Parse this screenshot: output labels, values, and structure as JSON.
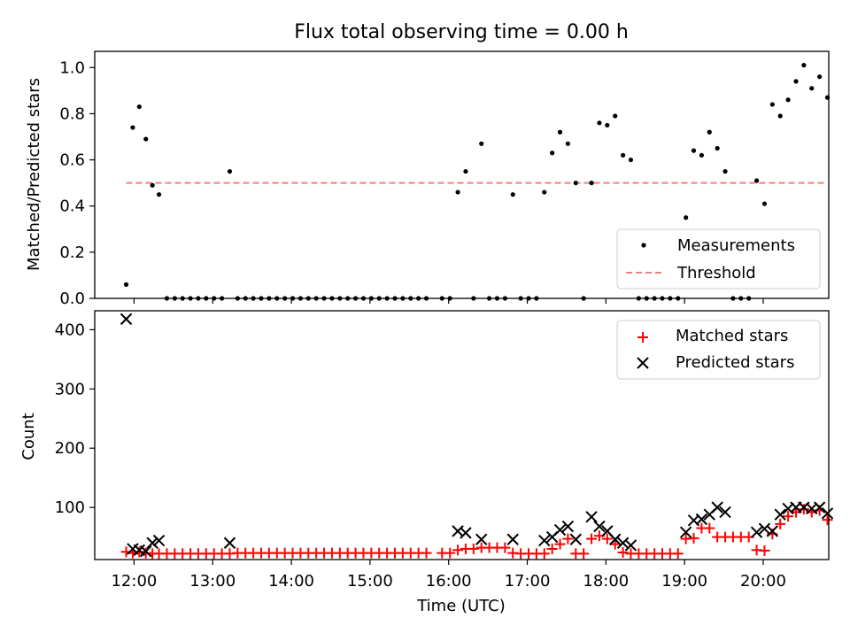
{
  "chart_data": [
    {
      "type": "scatter",
      "title": "Flux total observing time = 0.00 h",
      "xlabel": "",
      "ylabel": "Matched/Predicted stars",
      "xlim": [
        "11:30",
        "20:50"
      ],
      "ylim": [
        0,
        1.07
      ],
      "xticks": [
        "12:00",
        "13:00",
        "14:00",
        "15:00",
        "16:00",
        "17:00",
        "18:00",
        "19:00",
        "20:00"
      ],
      "yticks": [
        "0.0",
        "0.2",
        "0.4",
        "0.6",
        "0.8",
        "1.0"
      ],
      "legend": {
        "position": "lower-right"
      },
      "series": [
        {
          "name": "Measurements",
          "marker": "dot",
          "color": "#000000",
          "points": [
            [
              "11:54",
              0.06
            ],
            [
              "11:59",
              0.74
            ],
            [
              "12:04",
              0.83
            ],
            [
              "12:09",
              0.69
            ],
            [
              "12:14",
              0.49
            ],
            [
              "12:19",
              0.45
            ],
            [
              "12:25",
              0
            ],
            [
              "12:31",
              0
            ],
            [
              "12:37",
              0
            ],
            [
              "12:43",
              0
            ],
            [
              "12:49",
              0
            ],
            [
              "12:55",
              0
            ],
            [
              "13:01",
              0
            ],
            [
              "13:07",
              0
            ],
            [
              "13:13",
              0.55
            ],
            [
              "13:19",
              0
            ],
            [
              "13:25",
              0
            ],
            [
              "13:31",
              0
            ],
            [
              "13:37",
              0
            ],
            [
              "13:43",
              0
            ],
            [
              "13:49",
              0
            ],
            [
              "13:55",
              0
            ],
            [
              "14:01",
              0
            ],
            [
              "14:07",
              0
            ],
            [
              "14:13",
              0
            ],
            [
              "14:19",
              0
            ],
            [
              "14:25",
              0
            ],
            [
              "14:31",
              0
            ],
            [
              "14:37",
              0
            ],
            [
              "14:43",
              0
            ],
            [
              "14:49",
              0
            ],
            [
              "14:55",
              0
            ],
            [
              "15:01",
              0
            ],
            [
              "15:07",
              0
            ],
            [
              "15:13",
              0
            ],
            [
              "15:19",
              0
            ],
            [
              "15:25",
              0
            ],
            [
              "15:31",
              0
            ],
            [
              "15:37",
              0
            ],
            [
              "15:43",
              0
            ],
            [
              "15:55",
              0
            ],
            [
              "16:01",
              0
            ],
            [
              "16:07",
              0.46
            ],
            [
              "16:13",
              0.55
            ],
            [
              "16:19",
              0
            ],
            [
              "16:25",
              0.67
            ],
            [
              "16:31",
              0
            ],
            [
              "16:37",
              0
            ],
            [
              "16:43",
              0
            ],
            [
              "16:49",
              0.45
            ],
            [
              "16:55",
              0
            ],
            [
              "17:01",
              0
            ],
            [
              "17:07",
              0
            ],
            [
              "17:13",
              0.46
            ],
            [
              "17:19",
              0.63
            ],
            [
              "17:25",
              0.72
            ],
            [
              "17:31",
              0.67
            ],
            [
              "17:37",
              0.5
            ],
            [
              "17:43",
              0
            ],
            [
              "17:49",
              0.5
            ],
            [
              "17:55",
              0.76
            ],
            [
              "18:01",
              0.75
            ],
            [
              "18:07",
              0.79
            ],
            [
              "18:13",
              0.62
            ],
            [
              "18:19",
              0.6
            ],
            [
              "18:25",
              0
            ],
            [
              "18:31",
              0
            ],
            [
              "18:37",
              0
            ],
            [
              "18:43",
              0
            ],
            [
              "18:49",
              0
            ],
            [
              "18:55",
              0
            ],
            [
              "19:01",
              0.35
            ],
            [
              "19:07",
              0.64
            ],
            [
              "19:13",
              0.62
            ],
            [
              "19:19",
              0.72
            ],
            [
              "19:25",
              0.65
            ],
            [
              "19:31",
              0.55
            ],
            [
              "19:37",
              0
            ],
            [
              "19:43",
              0
            ],
            [
              "19:49",
              0
            ],
            [
              "19:55",
              0.51
            ],
            [
              "20:01",
              0.41
            ],
            [
              "20:07",
              0.84
            ],
            [
              "20:13",
              0.79
            ],
            [
              "20:19",
              0.86
            ],
            [
              "20:25",
              0.94
            ],
            [
              "20:31",
              1.01
            ],
            [
              "20:37",
              0.91
            ],
            [
              "20:43",
              0.96
            ],
            [
              "20:49",
              0.87
            ]
          ]
        },
        {
          "name": "Threshold",
          "type": "line",
          "style": "dashed",
          "color": "#f08080",
          "points": [
            [
              "11:54",
              0.5
            ],
            [
              "20:49",
              0.5
            ]
          ]
        }
      ]
    },
    {
      "type": "scatter",
      "title": "",
      "xlabel": "Time (UTC)",
      "ylabel": "Count",
      "xlim": [
        "11:30",
        "20:50"
      ],
      "ylim": [
        12,
        432
      ],
      "xticks": [
        "12:00",
        "13:00",
        "14:00",
        "15:00",
        "16:00",
        "17:00",
        "18:00",
        "19:00",
        "20:00"
      ],
      "yticks": [
        "100",
        "200",
        "300",
        "400"
      ],
      "legend": {
        "position": "upper-right"
      },
      "series": [
        {
          "name": "Matched stars",
          "marker": "plus",
          "color": "#ff0000",
          "points": [
            [
              "11:54",
              25
            ],
            [
              "11:59",
              23
            ],
            [
              "12:04",
              25
            ],
            [
              "12:09",
              23
            ],
            [
              "12:14",
              22
            ],
            [
              "12:19",
              22
            ],
            [
              "12:25",
              22
            ],
            [
              "12:31",
              22
            ],
            [
              "12:37",
              22
            ],
            [
              "12:43",
              22
            ],
            [
              "12:49",
              22
            ],
            [
              "12:55",
              22
            ],
            [
              "13:01",
              22
            ],
            [
              "13:07",
              22
            ],
            [
              "13:13",
              22
            ],
            [
              "13:19",
              23
            ],
            [
              "13:25",
              23
            ],
            [
              "13:31",
              23
            ],
            [
              "13:37",
              23
            ],
            [
              "13:43",
              23
            ],
            [
              "13:49",
              23
            ],
            [
              "13:55",
              23
            ],
            [
              "14:01",
              23
            ],
            [
              "14:07",
              23
            ],
            [
              "14:13",
              23
            ],
            [
              "14:19",
              23
            ],
            [
              "14:25",
              23
            ],
            [
              "14:31",
              23
            ],
            [
              "14:37",
              23
            ],
            [
              "14:43",
              23
            ],
            [
              "14:49",
              23
            ],
            [
              "14:55",
              23
            ],
            [
              "15:01",
              23
            ],
            [
              "15:07",
              23
            ],
            [
              "15:13",
              23
            ],
            [
              "15:19",
              23
            ],
            [
              "15:25",
              23
            ],
            [
              "15:31",
              23
            ],
            [
              "15:37",
              23
            ],
            [
              "15:43",
              23
            ],
            [
              "15:55",
              23
            ],
            [
              "16:01",
              23
            ],
            [
              "16:07",
              28
            ],
            [
              "16:13",
              30
            ],
            [
              "16:19",
              30
            ],
            [
              "16:25",
              32
            ],
            [
              "16:31",
              32
            ],
            [
              "16:37",
              32
            ],
            [
              "16:43",
              32
            ],
            [
              "16:49",
              23
            ],
            [
              "16:55",
              22
            ],
            [
              "17:01",
              22
            ],
            [
              "17:07",
              22
            ],
            [
              "17:13",
              22
            ],
            [
              "17:19",
              30
            ],
            [
              "17:25",
              38
            ],
            [
              "17:31",
              47
            ],
            [
              "17:37",
              22
            ],
            [
              "17:43",
              22
            ],
            [
              "17:49",
              47
            ],
            [
              "17:55",
              52
            ],
            [
              "18:01",
              47
            ],
            [
              "18:07",
              38
            ],
            [
              "18:13",
              24
            ],
            [
              "18:19",
              22
            ],
            [
              "18:25",
              22
            ],
            [
              "18:31",
              22
            ],
            [
              "18:37",
              22
            ],
            [
              "18:43",
              22
            ],
            [
              "18:49",
              22
            ],
            [
              "18:55",
              22
            ],
            [
              "19:01",
              47
            ],
            [
              "19:07",
              48
            ],
            [
              "19:13",
              65
            ],
            [
              "19:19",
              65
            ],
            [
              "19:25",
              50
            ],
            [
              "19:31",
              50
            ],
            [
              "19:37",
              50
            ],
            [
              "19:43",
              50
            ],
            [
              "19:49",
              50
            ],
            [
              "19:55",
              28
            ],
            [
              "20:01",
              27
            ],
            [
              "20:07",
              55
            ],
            [
              "20:13",
              72
            ],
            [
              "20:19",
              85
            ],
            [
              "20:25",
              92
            ],
            [
              "20:31",
              97
            ],
            [
              "20:37",
              92
            ],
            [
              "20:43",
              95
            ],
            [
              "20:49",
              79
            ]
          ]
        },
        {
          "name": "Predicted stars",
          "marker": "x",
          "color": "#000000",
          "points": [
            [
              "11:54",
              418
            ],
            [
              "11:59",
              30
            ],
            [
              "12:04",
              28
            ],
            [
              "12:09",
              26
            ],
            [
              "12:14",
              40
            ],
            [
              "12:19",
              44
            ],
            [
              "13:13",
              40
            ],
            [
              "16:07",
              60
            ],
            [
              "16:13",
              57
            ],
            [
              "16:25",
              46
            ],
            [
              "16:49",
              46
            ],
            [
              "17:13",
              44
            ],
            [
              "17:19",
              50
            ],
            [
              "17:25",
              62
            ],
            [
              "17:31",
              68
            ],
            [
              "17:37",
              46
            ],
            [
              "17:49",
              84
            ],
            [
              "17:55",
              68
            ],
            [
              "18:01",
              60
            ],
            [
              "18:07",
              46
            ],
            [
              "18:13",
              40
            ],
            [
              "18:19",
              36
            ],
            [
              "19:01",
              58
            ],
            [
              "19:07",
              78
            ],
            [
              "19:13",
              80
            ],
            [
              "19:19",
              88
            ],
            [
              "19:25",
              100
            ],
            [
              "19:31",
              92
            ],
            [
              "19:55",
              58
            ],
            [
              "20:01",
              64
            ],
            [
              "20:07",
              60
            ],
            [
              "20:13",
              88
            ],
            [
              "20:19",
              98
            ],
            [
              "20:25",
              100
            ],
            [
              "20:31",
              100
            ],
            [
              "20:37",
              98
            ],
            [
              "20:43",
              100
            ],
            [
              "20:49",
              90
            ]
          ]
        }
      ]
    }
  ]
}
